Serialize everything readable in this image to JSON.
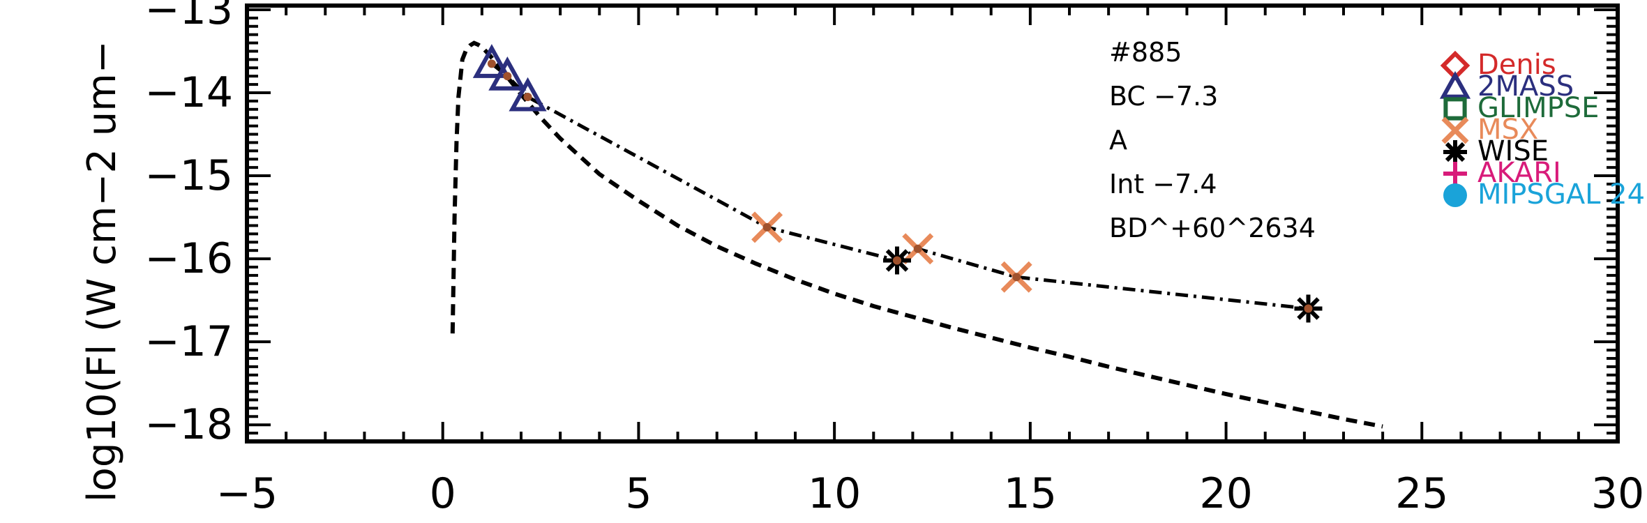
{
  "chart_data": {
    "type": "scatter",
    "ylabel": "log10(Fl (W cm−2 um−",
    "xlim": [
      -5,
      30
    ],
    "ylim": [
      -18.2,
      -12.95
    ],
    "x_ticks": [
      "−5",
      "0",
      "5",
      "10",
      "15",
      "20",
      "25",
      "30"
    ],
    "y_ticks": [
      "−13",
      "−14",
      "−15",
      "−16",
      "−17",
      "−18"
    ],
    "info_lines": [
      "#885",
      "BC  −7.3",
      "A",
      "Int  −7.4",
      "BD^+60^2634"
    ],
    "legend": [
      {
        "label": "Denis",
        "color": "#d42a2a",
        "marker": "diamond"
      },
      {
        "label": "2MASS",
        "color": "#2b2f7e",
        "marker": "triangle"
      },
      {
        "label": "GLIMPSE",
        "color": "#1e6b3a",
        "marker": "square"
      },
      {
        "label": "MSX",
        "color": "#e88a5a",
        "marker": "x"
      },
      {
        "label": "WISE",
        "color": "#000000",
        "marker": "asterisk"
      },
      {
        "label": "AKARI",
        "color": "#d81b7a",
        "marker": "plus"
      },
      {
        "label": "MIPSGAL 24",
        "color": "#1aa3d9",
        "marker": "circle"
      }
    ],
    "series": [
      {
        "name": "2MASS",
        "marker": "triangle",
        "color": "#2b2f7e",
        "x": [
          1.25,
          1.65,
          2.17
        ],
        "y": [
          -13.65,
          -13.8,
          -14.05
        ]
      },
      {
        "name": "MSX",
        "marker": "x",
        "color": "#e88a5a",
        "x": [
          8.28,
          12.13,
          14.65
        ],
        "y": [
          -15.62,
          -15.88,
          -16.22
        ]
      },
      {
        "name": "WISE",
        "marker": "asterisk",
        "color": "#000000",
        "x": [
          11.6,
          22.1
        ],
        "y": [
          -16.02,
          -16.6
        ]
      }
    ],
    "fit_line": {
      "style": "dash-dot",
      "x": [
        1.25,
        1.65,
        2.17,
        8.28,
        11.6,
        12.13,
        14.65,
        22.1
      ],
      "y": [
        -13.65,
        -13.8,
        -14.05,
        -15.62,
        -16.02,
        -15.88,
        -16.22,
        -16.6
      ]
    },
    "model_curve": {
      "style": "dashed",
      "x": [
        0.25,
        0.3,
        0.35,
        0.4,
        0.5,
        0.6,
        0.7,
        0.8,
        0.9,
        1.0,
        1.2,
        1.5,
        2.0,
        2.5,
        3,
        4,
        5,
        6,
        7,
        8,
        9,
        10,
        11,
        12,
        13,
        14,
        15,
        16,
        17,
        18,
        19,
        20,
        21,
        22,
        23,
        24
      ],
      "y": [
        -16.9,
        -15.5,
        -14.6,
        -14.05,
        -13.6,
        -13.48,
        -13.43,
        -13.4,
        -13.42,
        -13.45,
        -13.55,
        -13.72,
        -14.02,
        -14.3,
        -14.55,
        -14.98,
        -15.3,
        -15.6,
        -15.85,
        -16.06,
        -16.25,
        -16.42,
        -16.57,
        -16.7,
        -16.83,
        -16.95,
        -17.07,
        -17.18,
        -17.3,
        -17.41,
        -17.52,
        -17.63,
        -17.73,
        -17.83,
        -17.93,
        -18.02
      ]
    }
  }
}
